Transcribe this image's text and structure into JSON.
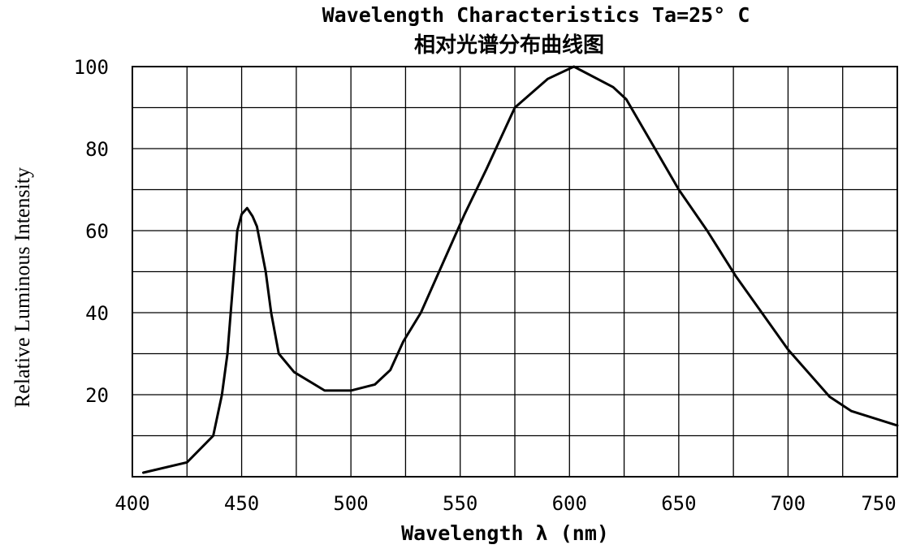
{
  "chart_data": {
    "type": "line",
    "title": "Wavelength Characteristics Ta=25° C",
    "subtitle": "相对光谱分布曲线图",
    "xlabel": "Wavelength λ  (nm)",
    "ylabel": "Relative Luminous Intensity",
    "xlim": [
      400,
      750
    ],
    "ylim": [
      0,
      100
    ],
    "x_ticks": [
      "400",
      "450",
      "500",
      "550",
      "600",
      "650",
      "700",
      "750"
    ],
    "y_ticks": [
      "20",
      "40",
      "60",
      "80",
      "100"
    ],
    "grid": true,
    "series": [
      {
        "color": "#000000",
        "points": [
          [
            405,
            1
          ],
          [
            425,
            3.5
          ],
          [
            437,
            10
          ],
          [
            441,
            20
          ],
          [
            443.5,
            30
          ],
          [
            445,
            40
          ],
          [
            446.5,
            50
          ],
          [
            448,
            60
          ],
          [
            450,
            64
          ],
          [
            452.5,
            65.5
          ],
          [
            455,
            63.5
          ],
          [
            457,
            61
          ],
          [
            461,
            50
          ],
          [
            463.5,
            40
          ],
          [
            467,
            30
          ],
          [
            474,
            25.5
          ],
          [
            488,
            21
          ],
          [
            500,
            21
          ],
          [
            511,
            22.5
          ],
          [
            518,
            26
          ],
          [
            524,
            33
          ],
          [
            532,
            40
          ],
          [
            542,
            52
          ],
          [
            552,
            64
          ],
          [
            562,
            75
          ],
          [
            575,
            90
          ],
          [
            590,
            97
          ],
          [
            602,
            100
          ],
          [
            620,
            95
          ],
          [
            626,
            92
          ],
          [
            650,
            70
          ],
          [
            663,
            60
          ],
          [
            676,
            49
          ],
          [
            700,
            31
          ],
          [
            719,
            19.5
          ],
          [
            729,
            16
          ],
          [
            750,
            12.5
          ]
        ]
      }
    ]
  }
}
